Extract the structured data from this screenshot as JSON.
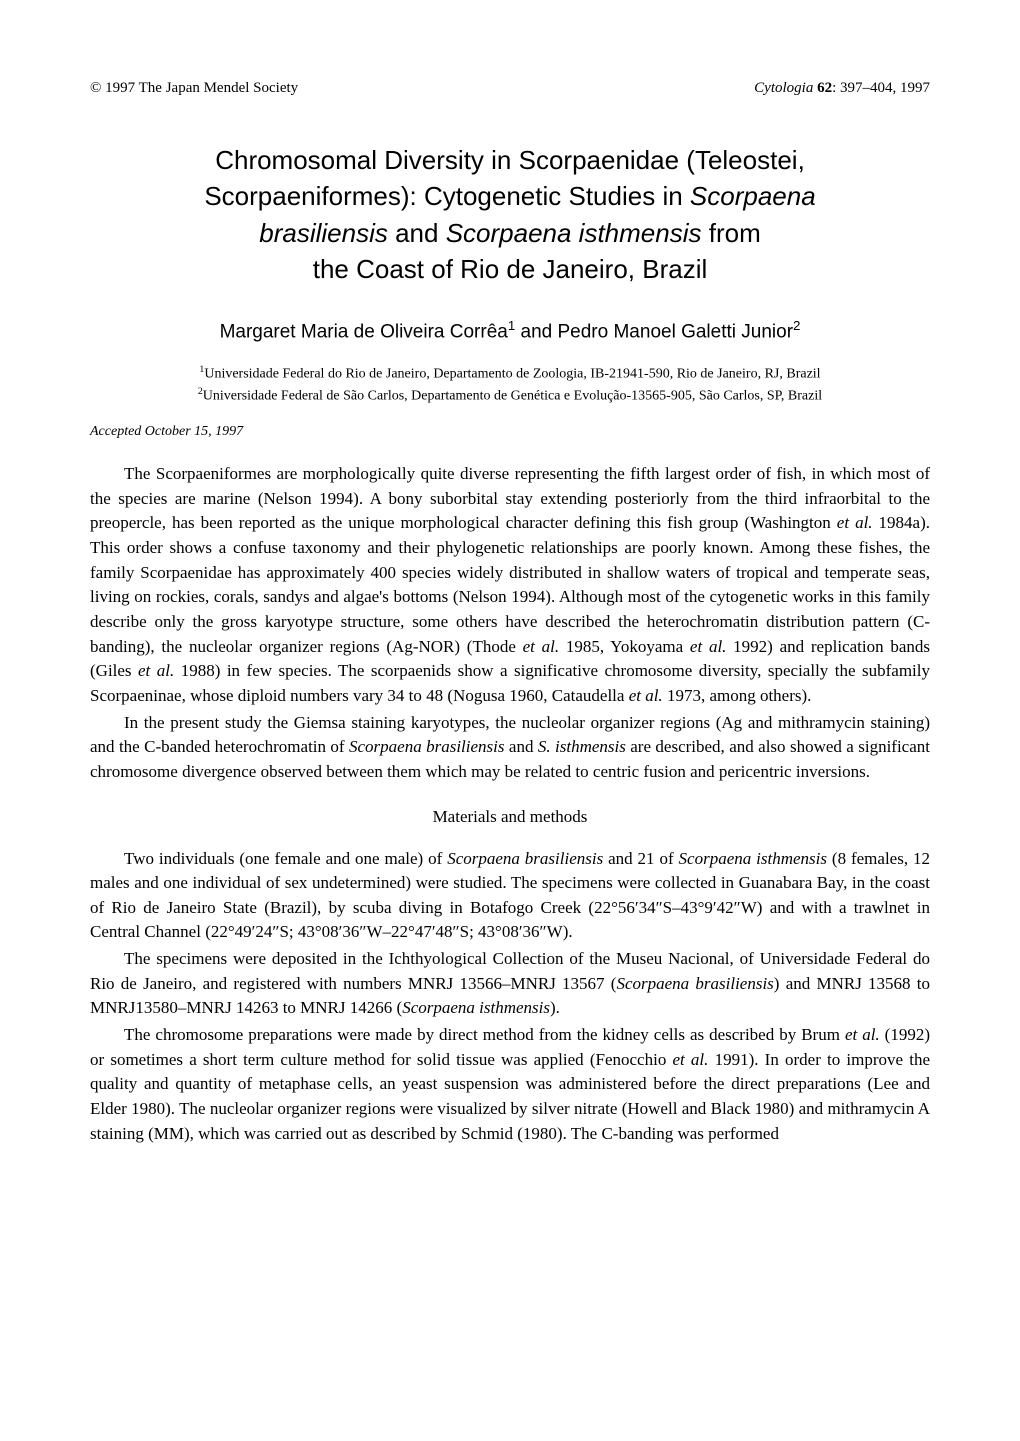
{
  "text_color": "#000000",
  "background_color": "#ffffff",
  "fonts": {
    "body_family": "Times New Roman",
    "heading_family": "Arial",
    "body_size_pt": 17,
    "title_size_pt": 26,
    "author_size_pt": 19,
    "affiliation_size_pt": 14,
    "header_size_pt": 15
  },
  "header": {
    "copyright": "© 1997 The Japan Mendel Society",
    "journal_italic": "Cytologia ",
    "volume": "62",
    "pages": ": 397–404, 1997"
  },
  "title": {
    "line1": "Chromosomal Diversity in Scorpaenidae (Teleostei,",
    "line2_prefix": "Scorpaeniformes): Cytogenetic Studies in ",
    "line2_italic": "Scorpaena",
    "line3_italic1": "brasiliensis",
    "line3_mid": " and ",
    "line3_italic2": "Scorpaena isthmensis",
    "line3_suffix": " from",
    "line4": "the Coast of Rio de Janeiro, Brazil"
  },
  "authors": {
    "a1": "Margaret Maria de Oliveira Corrêa",
    "a1_sup": "1",
    "conj": " and ",
    "a2": "Pedro Manoel Galetti Junior",
    "a2_sup": "2"
  },
  "affiliations": {
    "aff1_sup": "1",
    "aff1": "Universidade Federal do Rio de Janeiro, Departamento de Zoologia, IB-21941-590, Rio de Janeiro, RJ, Brazil",
    "aff2_sup": "2",
    "aff2": "Universidade Federal de São Carlos, Departamento de Genética e Evolução-13565-905, São Carlos, SP, Brazil"
  },
  "accepted": "Accepted October 15, 1997",
  "intro": {
    "p1_a": "The Scorpaeniformes are morphologically quite diverse representing the fifth largest order of fish, in which most of the species are marine (Nelson 1994). A bony suborbital stay extending posteriorly from the third infraorbital to the preopercle, has been reported as the unique morphological character defining this fish group (Washington ",
    "p1_it1": "et al.",
    "p1_b": " 1984a). This order shows a confuse taxonomy and their phylogenetic relationships are poorly known. Among these fishes, the family Scorpaenidae has approximately 400 species widely distributed in shallow waters of tropical and temperate seas, living on rockies, corals, sandys and algae's bottoms (Nelson 1994). Although most of the cytogenetic works in this family describe only the gross karyotype structure, some others have described the heterochromatin distribution pattern (C-banding), the nucleolar organizer regions (Ag-NOR) (Thode ",
    "p1_it2": "et al.",
    "p1_c": " 1985, Yokoyama ",
    "p1_it3": "et al.",
    "p1_d": " 1992) and replication bands (Giles ",
    "p1_it4": "et al.",
    "p1_e": " 1988) in few species. The scorpaenids show a significative chromosome diversity, specially the subfamily Scorpaeninae, whose diploid numbers vary 34 to 48 (Nogusa 1960, Cataudella ",
    "p1_it5": "et al.",
    "p1_f": " 1973, among others).",
    "p2_a": "In the present study the Giemsa staining karyotypes, the nucleolar organizer regions (Ag and mithramycin staining) and the C-banded heterochromatin of ",
    "p2_it1": "Scorpaena brasiliensis",
    "p2_b": " and ",
    "p2_it2": "S. isthmensis",
    "p2_c": " are described, and also showed a significant chromosome divergence observed between them which may be related to centric fusion and pericentric inversions."
  },
  "methods_heading": "Materials and methods",
  "methods": {
    "p1_a": "Two individuals (one female and one male) of ",
    "p1_it1": "Scorpaena brasiliensis",
    "p1_b": " and 21 of ",
    "p1_it2": "Scorpaena isthmensis",
    "p1_c": " (8 females, 12 males and one individual of sex undetermined) were studied. The specimens were collected in Guanabara Bay, in the coast of Rio de Janeiro State (Brazil), by scuba diving in Botafogo Creek (22°56′34″S–43°9′42″W) and with a trawlnet in Central Channel (22°49′24″S; 43°08′36″W–22°47′48″S; 43°08′36″W).",
    "p2_a": "The specimens were deposited in the Ichthyological Collection of the Museu Nacional, of Universidade Federal do Rio de Janeiro, and registered with numbers MNRJ 13566–MNRJ 13567 (",
    "p2_it1": "Scorpaena brasiliensis",
    "p2_b": ") and MNRJ 13568 to MNRJ13580–MNRJ 14263 to MNRJ 14266 (",
    "p2_it2": "Scorpaena isthmensis",
    "p2_c": ").",
    "p3_a": "The chromosome preparations were made by direct method from the kidney cells as described by Brum ",
    "p3_it1": "et al.",
    "p3_b": " (1992) or sometimes a short term culture method for solid tissue was applied (Fenocchio ",
    "p3_it2": "et al.",
    "p3_c": " 1991). In order to improve the quality and quantity of metaphase cells, an yeast suspension was administered before the direct preparations (Lee and Elder 1980). The nucleolar organizer regions were visualized by silver nitrate (Howell and Black 1980) and mithramycin A staining (MM), which was carried out as described by Schmid (1980). The C-banding was performed"
  }
}
